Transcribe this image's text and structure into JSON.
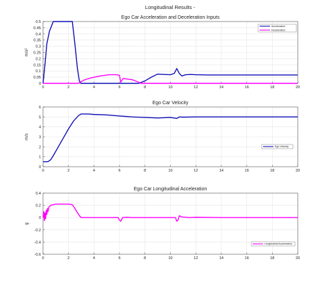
{
  "figure_title": "Longitudinal Results -",
  "colors": {
    "acceleration": "#1010b8",
    "deceleration": "#ff00ff",
    "velocity": "#1010b8",
    "long_accel": "#ff00ff",
    "grid": "#e6e6e6",
    "axis": "#555555",
    "text": "#222222"
  },
  "chart_data": [
    {
      "type": "line",
      "title": "Ego Car Acceleration and Deceleration Inputs",
      "xlabel": "",
      "ylabel": "m/s²",
      "xlim": [
        0,
        20
      ],
      "ylim": [
        0,
        0.5
      ],
      "xticks": [
        0,
        2,
        4,
        6,
        8,
        10,
        12,
        14,
        16,
        18,
        20
      ],
      "yticks": [
        0,
        0.05,
        0.1,
        0.15,
        0.2,
        0.25,
        0.3,
        0.35,
        0.4,
        0.45,
        0.5
      ],
      "ytick_labels": [
        "0",
        "0.05",
        "0.1",
        "0.15",
        "0.2",
        "0.25",
        "0.3",
        "0.35",
        "0.4",
        "0.45",
        "0.5"
      ],
      "grid": true,
      "legend": "top-right",
      "series": [
        {
          "name": "Acceleration",
          "color_key": "acceleration",
          "x": [
            0,
            0.15,
            0.3,
            0.5,
            0.8,
            1.2,
            1.6,
            2.0,
            2.3,
            2.5,
            2.7,
            2.85,
            3.0,
            3.3,
            3.6,
            4.0,
            5.0,
            6.0,
            7.0,
            7.5,
            8.0,
            8.5,
            9.0,
            9.5,
            10.0,
            10.3,
            10.5,
            10.7,
            10.9,
            11.2,
            11.6,
            12.0,
            13.0,
            15.0,
            17.0,
            19.0,
            20.0
          ],
          "y": [
            0.0,
            0.15,
            0.32,
            0.42,
            0.5,
            0.5,
            0.5,
            0.5,
            0.5,
            0.32,
            0.12,
            0.02,
            0.0,
            0.0,
            0.0,
            0.0,
            0.0,
            0.0,
            0.0,
            0.0,
            0.02,
            0.05,
            0.075,
            0.072,
            0.07,
            0.08,
            0.12,
            0.08,
            0.06,
            0.07,
            0.072,
            0.07,
            0.068,
            0.068,
            0.068,
            0.068,
            0.068
          ]
        },
        {
          "name": "Deceleration",
          "color_key": "deceleration",
          "x": [
            0,
            2.7,
            2.85,
            3.0,
            3.3,
            3.8,
            4.5,
            5.2,
            5.8,
            6.0,
            6.1,
            6.3,
            6.6,
            7.0,
            7.5,
            7.7,
            8.0,
            10.0,
            12.0,
            14.0,
            16.0,
            18.0,
            20.0
          ],
          "y": [
            0,
            0,
            0.005,
            0.015,
            0.03,
            0.045,
            0.06,
            0.07,
            0.07,
            0.065,
            0.01,
            0.04,
            0.035,
            0.03,
            0.01,
            0.0,
            0.0,
            0.0,
            0.0,
            0.0,
            0.0,
            0.0,
            0.0
          ]
        }
      ]
    },
    {
      "type": "line",
      "title": "Ego Car Velocity",
      "xlabel": "",
      "ylabel": "m/s",
      "xlim": [
        0,
        20
      ],
      "ylim": [
        0,
        6
      ],
      "xticks": [
        0,
        2,
        4,
        6,
        8,
        10,
        12,
        14,
        16,
        18,
        20
      ],
      "yticks": [
        0,
        1,
        2,
        3,
        4,
        5,
        6
      ],
      "ytick_labels": [
        "0",
        "1",
        "2",
        "3",
        "4",
        "5",
        "6"
      ],
      "grid": true,
      "legend": "center-right",
      "series": [
        {
          "name": "Ego Velocity",
          "color_key": "velocity",
          "x": [
            0,
            0.2,
            0.4,
            0.6,
            0.8,
            1.2,
            1.6,
            2.0,
            2.4,
            2.8,
            3.0,
            3.5,
            4.0,
            5.0,
            6.0,
            6.5,
            7.0,
            8.0,
            9.0,
            10.0,
            10.5,
            10.7,
            11.0,
            12.0,
            14.0,
            16.0,
            18.0,
            20.0
          ],
          "y": [
            0.5,
            0.5,
            0.52,
            0.7,
            1.1,
            2.0,
            2.9,
            3.8,
            4.6,
            5.15,
            5.3,
            5.3,
            5.25,
            5.2,
            5.1,
            5.05,
            5.0,
            4.95,
            4.9,
            4.95,
            4.85,
            5.0,
            4.98,
            5.0,
            5.0,
            5.0,
            5.0,
            5.0
          ]
        }
      ]
    },
    {
      "type": "line",
      "title": "Ego Car Longitudinal Acceleration",
      "xlabel": "",
      "ylabel": "g",
      "xlim": [
        0,
        20
      ],
      "ylim": [
        -0.6,
        0.4
      ],
      "xticks": [
        0,
        2,
        4,
        6,
        8,
        10,
        12,
        14,
        16,
        18,
        20
      ],
      "yticks": [
        -0.6,
        -0.4,
        -0.2,
        0,
        0.2,
        0.4
      ],
      "ytick_labels": [
        "-0.6",
        "-0.4",
        "-0.2",
        "0",
        "0.2",
        "0.4"
      ],
      "grid": true,
      "legend": "bottom-right",
      "series": [
        {
          "name": "Longitudinal Acceleration",
          "color_key": "long_accel",
          "x": [
            0,
            0.05,
            0.1,
            0.15,
            0.2,
            0.25,
            0.3,
            0.35,
            0.4,
            0.45,
            0.5,
            0.6,
            0.8,
            1.0,
            1.5,
            2.0,
            2.3,
            2.5,
            2.7,
            2.9,
            3.0,
            3.5,
            4.0,
            5.0,
            5.9,
            6.0,
            6.1,
            6.25,
            6.5,
            7.0,
            8.0,
            9.0,
            10.0,
            10.4,
            10.5,
            10.6,
            10.7,
            10.9,
            11.5,
            12.0,
            14.0,
            16.0,
            18.0,
            20.0
          ],
          "y": [
            0.0,
            0.1,
            -0.05,
            0.08,
            -0.02,
            0.12,
            0.05,
            0.15,
            0.1,
            0.17,
            0.18,
            0.2,
            0.21,
            0.22,
            0.22,
            0.22,
            0.21,
            0.15,
            0.08,
            0.02,
            0.0,
            0.0,
            0.0,
            0.0,
            0.0,
            -0.04,
            -0.06,
            0.0,
            0.005,
            0.0,
            0.0,
            0.0,
            0.0,
            0.0,
            -0.06,
            -0.04,
            0.03,
            0.01,
            0.0,
            0.005,
            0.0,
            0.0,
            0.0,
            0.0
          ]
        }
      ]
    }
  ]
}
